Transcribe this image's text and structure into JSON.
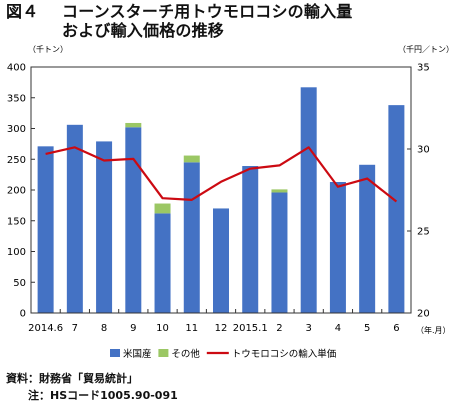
{
  "title": {
    "fig_label": "図４",
    "line1": "コーンスターチ用トウモロコシの輸入量",
    "line2": "および輸入価格の推移"
  },
  "source": {
    "line1": "資料：財務省「貿易統計」",
    "line2": "注：HSコード1005.90-091"
  },
  "chart_data": {
    "type": "bar",
    "stacked": true,
    "categories": [
      "2014.6",
      "7",
      "8",
      "9",
      "10",
      "11",
      "12",
      "2015.1",
      "2",
      "3",
      "4",
      "5",
      "6"
    ],
    "x_unit": "（年.月）",
    "y_left": {
      "unit": "（千トン）",
      "min": 0,
      "max": 400,
      "ticks": [
        0,
        50,
        100,
        150,
        200,
        250,
        300,
        350,
        400
      ]
    },
    "y_right": {
      "unit": "（千円／トン）",
      "min": 20,
      "max": 35,
      "ticks": [
        20,
        25,
        30,
        35
      ]
    },
    "grid": false,
    "legend_position": "bottom",
    "series": [
      {
        "name": "米国産",
        "kind": "bar",
        "axis": "left",
        "color": "#4472c4",
        "values": [
          271,
          306,
          279,
          302,
          162,
          245,
          170,
          239,
          196,
          367,
          213,
          241,
          338
        ]
      },
      {
        "name": "その他",
        "kind": "bar",
        "axis": "left",
        "color": "#9bc764",
        "values": [
          0,
          0,
          0,
          7,
          16,
          11,
          0,
          0,
          5,
          0,
          0,
          0,
          0
        ]
      },
      {
        "name": "トウモロコシの輸入単価",
        "kind": "line",
        "axis": "right",
        "color": "#cc0a12",
        "values": [
          29.7,
          30.1,
          29.3,
          29.4,
          27.0,
          26.9,
          28.0,
          28.8,
          29.0,
          30.1,
          27.7,
          28.2,
          26.8
        ]
      }
    ]
  }
}
